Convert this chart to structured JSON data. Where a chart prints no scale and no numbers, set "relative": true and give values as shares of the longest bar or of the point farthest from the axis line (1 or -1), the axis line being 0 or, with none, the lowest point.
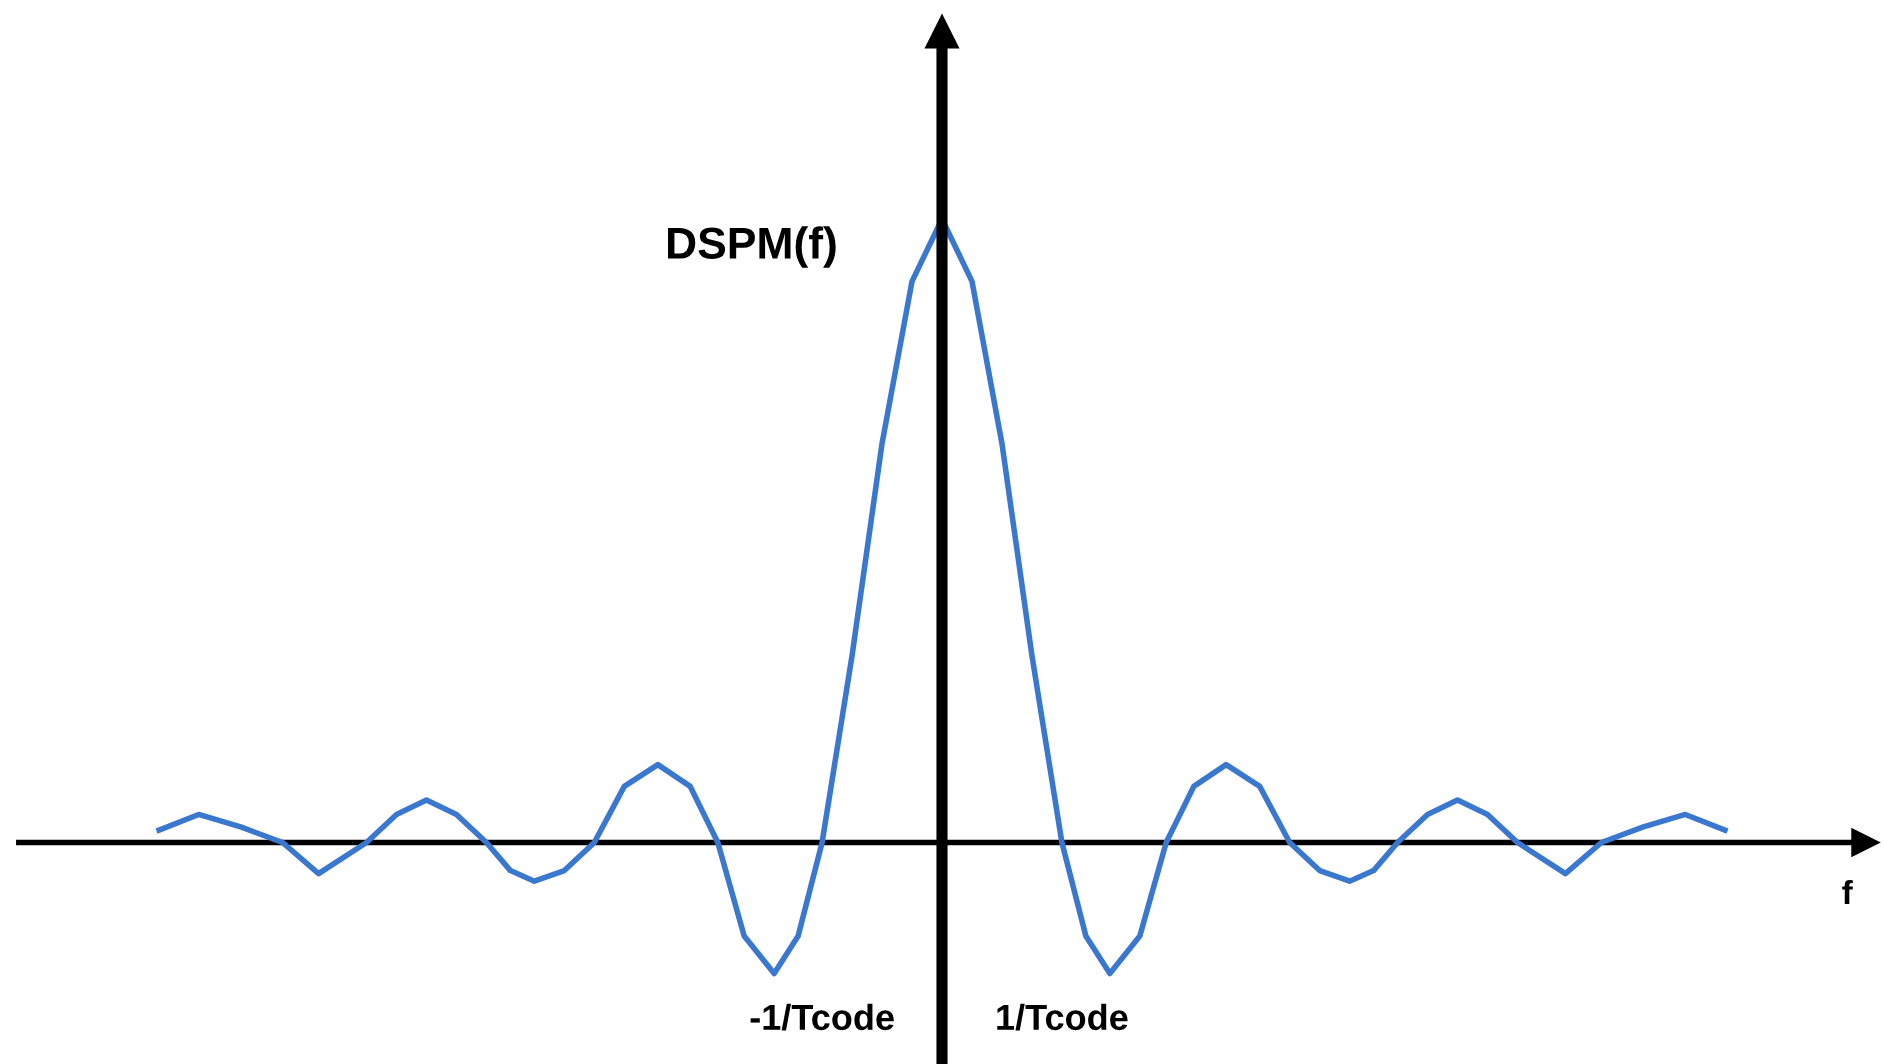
{
  "chart_data": {
    "type": "line",
    "relative": true,
    "ylabel": "DSPM(f)",
    "xlabel": "f",
    "x": [
      -6.53,
      -6.2,
      -5.85,
      -5.5,
      -5.2,
      -4.8,
      -4.55,
      -4.3,
      -4.05,
      -3.8,
      -3.6,
      -3.4,
      -3.15,
      -2.9,
      -2.65,
      -2.37,
      -2.1,
      -1.87,
      -1.65,
      -1.4,
      -1.2,
      -1.0,
      -0.75,
      -0.5,
      -0.25,
      0,
      0.25,
      0.5,
      0.75,
      1.0,
      1.2,
      1.4,
      1.65,
      1.87,
      2.1,
      2.37,
      2.65,
      2.9,
      3.15,
      3.4,
      3.6,
      3.8,
      4.05,
      4.3,
      4.55,
      4.8,
      5.2,
      5.5,
      5.85,
      6.2,
      6.53
    ],
    "series": [
      {
        "color": "#3a78d0",
        "values": [
          0.02,
          0.045,
          0.025,
          0,
          -0.05,
          0,
          0.045,
          0.068,
          0.045,
          0,
          -0.045,
          -0.062,
          -0.045,
          0,
          0.09,
          0.125,
          0.09,
          0,
          -0.15,
          -0.21,
          -0.15,
          0,
          0.3,
          0.64,
          0.9,
          1,
          0.9,
          0.64,
          0.3,
          0,
          -0.15,
          -0.21,
          -0.15,
          0,
          0.09,
          0.125,
          0.09,
          0,
          -0.045,
          -0.062,
          -0.045,
          0,
          0.045,
          0.068,
          0.045,
          0,
          -0.05,
          0,
          0.025,
          0.045,
          0.02
        ]
      }
    ],
    "xlim": [
      -7.7,
      7.7
    ],
    "xticks": [
      {
        "value": -1,
        "label": "-1/Tcode"
      },
      {
        "value": 1,
        "label": "1/Tcode"
      }
    ],
    "grid": false,
    "legend": false,
    "marker": "none",
    "line_style": "solid"
  }
}
